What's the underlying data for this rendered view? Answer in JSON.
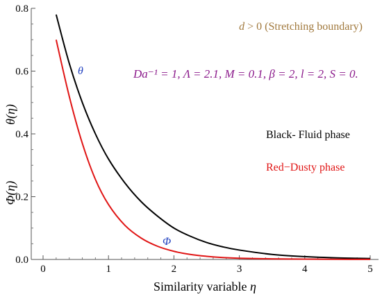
{
  "chart_data": {
    "type": "line",
    "xlabel_text": "Similarity variable ",
    "xlabel_sym": "η",
    "ylabel_upper": "θ(η)",
    "ylabel_lower": "Φ(η)",
    "xlim": [
      0,
      5
    ],
    "ylim": [
      0,
      0.8
    ],
    "x_ticks": [
      0,
      1,
      2,
      3,
      4,
      5
    ],
    "y_ticks": [
      0.0,
      0.2,
      0.4,
      0.6,
      0.8
    ],
    "y_tick_labels": [
      "0.0",
      "0.2",
      "0.4",
      "0.6",
      "0.8"
    ],
    "grid": false,
    "annotations": {
      "boundary": {
        "sym": "d",
        "text": " > 0 (Stretching boundary)",
        "color": "#a0783c"
      },
      "params": "Da⁻¹ = 1, Λ = 2.1, M = 0.1, β = 2, l = 2, S = 0.",
      "params_color": "#8b1a8b",
      "legend_black": "Black- Fluid phase",
      "legend_red": "Red−Dusty phase",
      "theta_label": "θ",
      "phi_label": "Φ",
      "label_color": "#1f3fbf"
    },
    "series": [
      {
        "name": "θ",
        "color": "#000000",
        "x": [
          0.2,
          0.4,
          0.6,
          0.8,
          1.0,
          1.25,
          1.5,
          1.75,
          2.0,
          2.25,
          2.5,
          2.75,
          3.0,
          3.5,
          4.0,
          4.5,
          5.0
        ],
        "y": [
          0.78,
          0.625,
          0.5,
          0.4,
          0.32,
          0.244,
          0.184,
          0.138,
          0.1,
          0.074,
          0.054,
          0.04,
          0.03,
          0.016,
          0.009,
          0.005,
          0.003
        ]
      },
      {
        "name": "Φ",
        "color": "#e01414",
        "x": [
          0.2,
          0.4,
          0.6,
          0.8,
          1.0,
          1.25,
          1.5,
          1.75,
          2.0,
          2.25,
          2.5,
          2.75,
          3.0,
          3.5,
          4.0,
          4.5,
          5.0
        ],
        "y": [
          0.7,
          0.52,
          0.37,
          0.255,
          0.175,
          0.109,
          0.068,
          0.042,
          0.026,
          0.016,
          0.01,
          0.006,
          0.004,
          0.002,
          0.001,
          0.0005,
          0.0002
        ]
      }
    ]
  }
}
